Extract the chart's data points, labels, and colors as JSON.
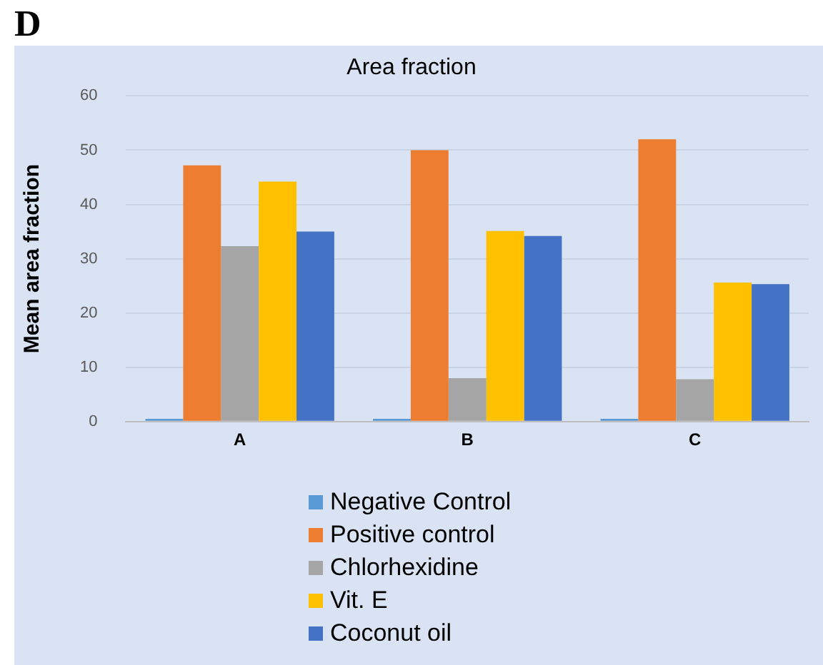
{
  "chart_data": {
    "type": "bar",
    "title": "Area fraction",
    "ylabel": "Mean area fraction",
    "annotations": [
      "D"
    ],
    "categories": [
      "A",
      "B",
      "C"
    ],
    "series": [
      {
        "name": "Negative  Control",
        "color": "#5b9bd5",
        "values": [
          0.5,
          0.5,
          0.5
        ]
      },
      {
        "name": "Positive control",
        "color": "#ed7d31",
        "values": [
          47.2,
          50,
          52
        ]
      },
      {
        "name": "Chlorhexidine",
        "color": "#a5a5a5",
        "values": [
          32.3,
          8,
          7.8
        ]
      },
      {
        "name": "Vit. E",
        "color": "#ffc000",
        "values": [
          44.2,
          35.1,
          25.6
        ]
      },
      {
        "name": "Coconut oil",
        "color": "#4472c4",
        "values": [
          35,
          34.2,
          25.3
        ]
      }
    ],
    "ylim": [
      0,
      60
    ],
    "yticks": [
      0,
      10,
      20,
      30,
      40,
      50,
      60
    ],
    "grid": "y",
    "legend": "bottom"
  }
}
